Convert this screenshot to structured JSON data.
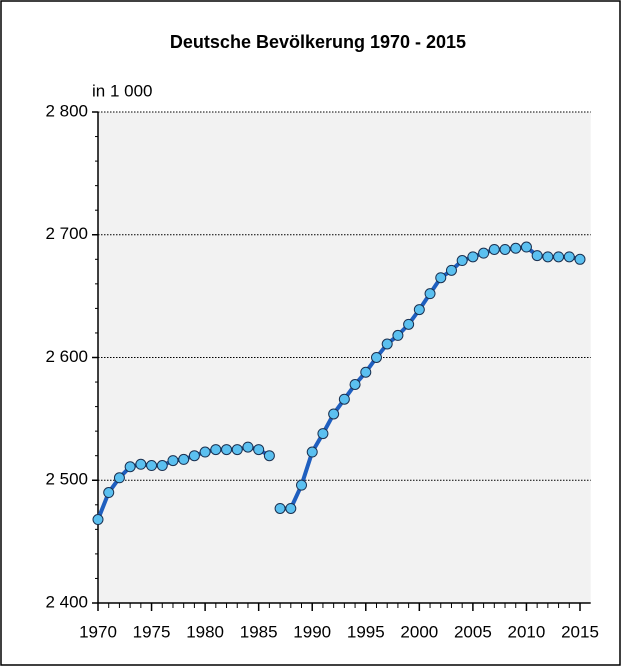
{
  "chart_data": {
    "type": "line",
    "title": "Deutsche Bevölkerung 1970 - 2015",
    "y_unit_label": "in 1 000",
    "series": [
      {
        "color": "#1f5fbf",
        "marker_color": "#5bc0f0",
        "x": [
          1970,
          1971,
          1972,
          1973,
          1974,
          1975,
          1976,
          1977,
          1978,
          1979,
          1980,
          1981,
          1982,
          1983,
          1984,
          1985,
          1986
        ],
        "values": [
          2468,
          2490,
          2502,
          2511,
          2513,
          2512,
          2512,
          2516,
          2517,
          2520,
          2523,
          2525,
          2525,
          2525,
          2527,
          2525,
          2520
        ]
      },
      {
        "color": "#1f5fbf",
        "marker_color": "#5bc0f0",
        "x": [
          1987,
          1988,
          1989,
          1990,
          1991,
          1992,
          1993,
          1994,
          1995,
          1996,
          1997,
          1998,
          1999,
          2000,
          2001,
          2002,
          2003,
          2004,
          2005,
          2006,
          2007,
          2008,
          2009,
          2010,
          2011,
          2012,
          2013,
          2014,
          2015
        ],
        "values": [
          2477,
          2477,
          2496,
          2523,
          2538,
          2554,
          2566,
          2578,
          2588,
          2600,
          2611,
          2618,
          2627,
          2639,
          2652,
          2665,
          2671,
          2679,
          2682,
          2685,
          2688,
          2688,
          2689,
          2690,
          2683,
          2682,
          2682,
          2682,
          2680
        ]
      }
    ],
    "xlim": [
      1970,
      2016
    ],
    "xticks": [
      1970,
      1975,
      1980,
      1985,
      1990,
      1995,
      2000,
      2005,
      2010,
      2015
    ],
    "ylim": [
      2400,
      2800
    ],
    "yticks": [
      {
        "value": 2400,
        "label": "2 400"
      },
      {
        "value": 2500,
        "label": "2 500"
      },
      {
        "value": 2600,
        "label": "2 600"
      },
      {
        "value": 2700,
        "label": "2 700"
      },
      {
        "value": 2800,
        "label": "2 800"
      }
    ],
    "grid": true
  }
}
